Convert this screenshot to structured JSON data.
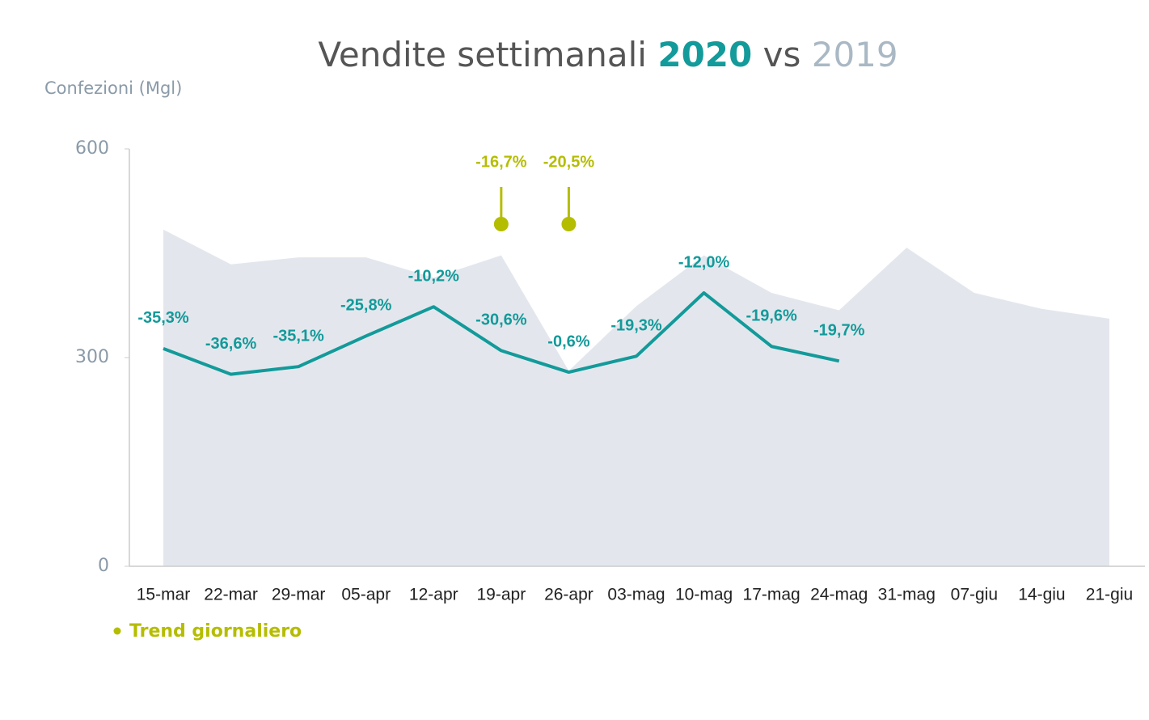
{
  "chart_data": {
    "type": "line_area",
    "title": "Vendite settimanali",
    "title_connector": "vs",
    "ylabel": "Confezioni (Mgl)",
    "categories": [
      "15-mar",
      "22-mar",
      "29-mar",
      "05-apr",
      "12-apr",
      "19-apr",
      "26-apr",
      "03-mag",
      "10-mag",
      "17-mag",
      "24-mag",
      "31-mag",
      "07-giu",
      "14-giu",
      "21-giu"
    ],
    "series": [
      {
        "name": "2020",
        "color": "#139a9a",
        "style": "line",
        "values": [
          313,
          276,
          287,
          331,
          373,
          310,
          279,
          302,
          393,
          316,
          295,
          null,
          null,
          null,
          null
        ]
      },
      {
        "name": "2019",
        "color": "#a9b8c4",
        "area_color": "#e3e7ed",
        "style": "area",
        "values": [
          484,
          434,
          444,
          444,
          415,
          447,
          281,
          374,
          447,
          393,
          368,
          458,
          393,
          370,
          356
        ]
      }
    ],
    "yoy_change": {
      "values": [
        -35.3,
        -36.6,
        -35.1,
        -25.8,
        -10.2,
        -30.6,
        -0.6,
        -19.3,
        -12.0,
        -19.6,
        -19.7,
        null,
        null,
        null,
        null
      ],
      "value_labels": [
        "-35,3%",
        "-36,6%",
        "-35,1%",
        "-25,8%",
        "-10,2%",
        "-30,6%",
        "-0,6%",
        "-19,3%",
        "-12,0%",
        "-19,6%",
        "-19,7%",
        null,
        null,
        null,
        null
      ]
    },
    "daily_trend": {
      "name": "Trend giornaliero",
      "color": "#b5bd00",
      "at": [
        "19-apr",
        "26-apr"
      ],
      "values": [
        -16.7,
        -20.5
      ],
      "value_labels": [
        "-16,7%",
        "-20,5%"
      ]
    },
    "ylim": [
      0,
      600
    ],
    "yticks": [
      0,
      300,
      600
    ]
  }
}
